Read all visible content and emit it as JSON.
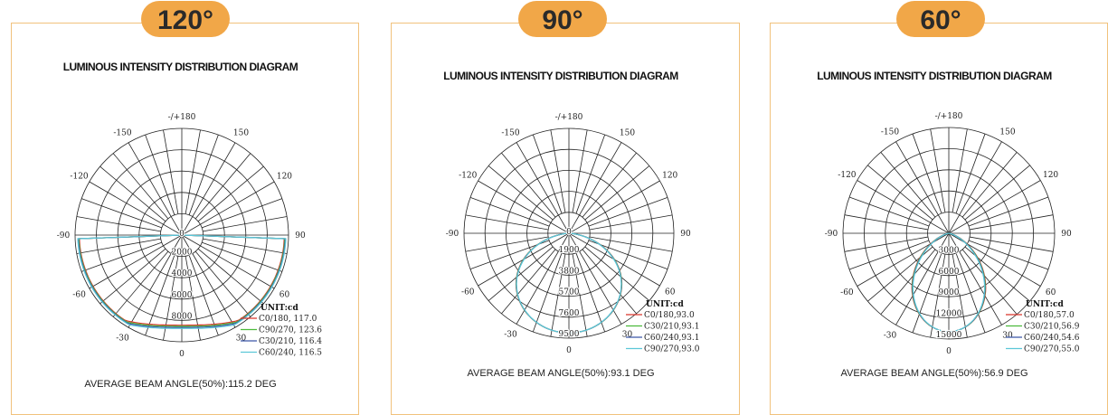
{
  "panels": [
    {
      "badge": "120°",
      "title": "LUMINOUS INTENSITY DISTRIBUTION DIAGRAM",
      "angle_labels": [
        "-/+180",
        "150",
        "120",
        "90",
        "60",
        "30",
        "0",
        "-30",
        "-60",
        "-90",
        "-120",
        "-150"
      ],
      "radial_labels": [
        "0",
        "2000",
        "4000",
        "6000",
        "8000"
      ],
      "unit": "UNIT:cd",
      "legend": [
        "C0/180, 117.0",
        "C90/270, 123.6",
        "C30/210, 116.4",
        "C60/240, 116.5"
      ],
      "footer": "AVERAGE BEAM ANGLE(50%):115.2 DEG"
    },
    {
      "badge": "90°",
      "title": "LUMINOUS INTENSITY DISTRIBUTION DIAGRAM",
      "angle_labels": [
        "-/+180",
        "150",
        "120",
        "90",
        "60",
        "30",
        "0",
        "-30",
        "-60",
        "-90",
        "-120",
        "-150"
      ],
      "radial_labels": [
        "0",
        "1900",
        "3800",
        "5700",
        "7600",
        "9500"
      ],
      "unit": "UNIT:cd",
      "legend": [
        "C0/180,93.0",
        "C30/210,93.1",
        "C60/240,93.1",
        "C90/270,93.0"
      ],
      "footer": "AVERAGE BEAM ANGLE(50%):93.1 DEG"
    },
    {
      "badge": "60°",
      "title": "LUMINOUS INTENSITY DISTRIBUTION DIAGRAM",
      "angle_labels": [
        "-/+180",
        "150",
        "120",
        "90",
        "60",
        "30",
        "0",
        "-30",
        "-60",
        "-90",
        "-120",
        "-150"
      ],
      "radial_labels": [
        "3000",
        "6000",
        "9000",
        "12000",
        "15000"
      ],
      "unit": "UNIT:cd",
      "legend": [
        "C0/180,57.0",
        "C30/210,56.9",
        "C60/240,54.6",
        "C90/270,55.0"
      ],
      "footer": "AVERAGE BEAM ANGLE(50%):56.9 DEG"
    }
  ]
}
